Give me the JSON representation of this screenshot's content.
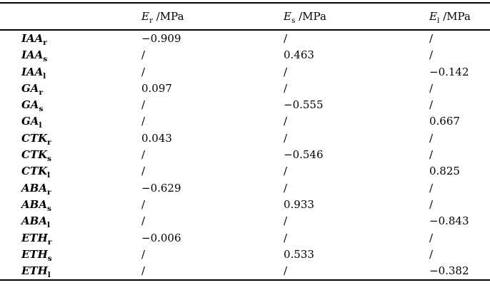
{
  "table": {
    "corner_label": "",
    "columns": [
      {
        "symbol": "E",
        "sub": "r",
        "unit": " /MPa"
      },
      {
        "symbol": "E",
        "sub": "s",
        "unit": " /MPa"
      },
      {
        "symbol": "E",
        "sub": "l",
        "unit": " /MPa"
      }
    ],
    "rows": [
      {
        "label": "IAA",
        "sub": "r",
        "values": [
          "−0.909",
          "/",
          "/"
        ]
      },
      {
        "label": "IAA",
        "sub": "s",
        "values": [
          "/",
          "0.463",
          "/"
        ]
      },
      {
        "label": "IAA",
        "sub": "l",
        "values": [
          "/",
          "/",
          "−0.142"
        ]
      },
      {
        "label": "GA",
        "sub": "r",
        "values": [
          "0.097",
          "/",
          "/"
        ]
      },
      {
        "label": "GA",
        "sub": "s",
        "values": [
          "/",
          "−0.555",
          "/"
        ]
      },
      {
        "label": "GA",
        "sub": "l",
        "values": [
          "/",
          "/",
          "0.667"
        ]
      },
      {
        "label": "CTK",
        "sub": "r",
        "values": [
          "0.043",
          "/",
          "/"
        ]
      },
      {
        "label": "CTK",
        "sub": "s",
        "values": [
          "/",
          "−0.546",
          "/"
        ]
      },
      {
        "label": "CTK",
        "sub": "l",
        "values": [
          "/",
          "/",
          "0.825"
        ]
      },
      {
        "label": "ABA",
        "sub": "r",
        "values": [
          "−0.629",
          "/",
          "/"
        ]
      },
      {
        "label": "ABA",
        "sub": "s",
        "values": [
          "/",
          "0.933",
          "/"
        ]
      },
      {
        "label": "ABA",
        "sub": "l",
        "values": [
          "/",
          "/",
          "−0.843"
        ]
      },
      {
        "label": "ETH",
        "sub": "r",
        "values": [
          "−0.006",
          "/",
          "/"
        ]
      },
      {
        "label": "ETH",
        "sub": "s",
        "values": [
          "/",
          "0.533",
          "/"
        ]
      },
      {
        "label": "ETH",
        "sub": "l",
        "values": [
          "/",
          "/",
          "−0.382"
        ]
      }
    ],
    "colors": {
      "text": "#000000",
      "background": "#ffffff",
      "rule": "#000000"
    }
  }
}
